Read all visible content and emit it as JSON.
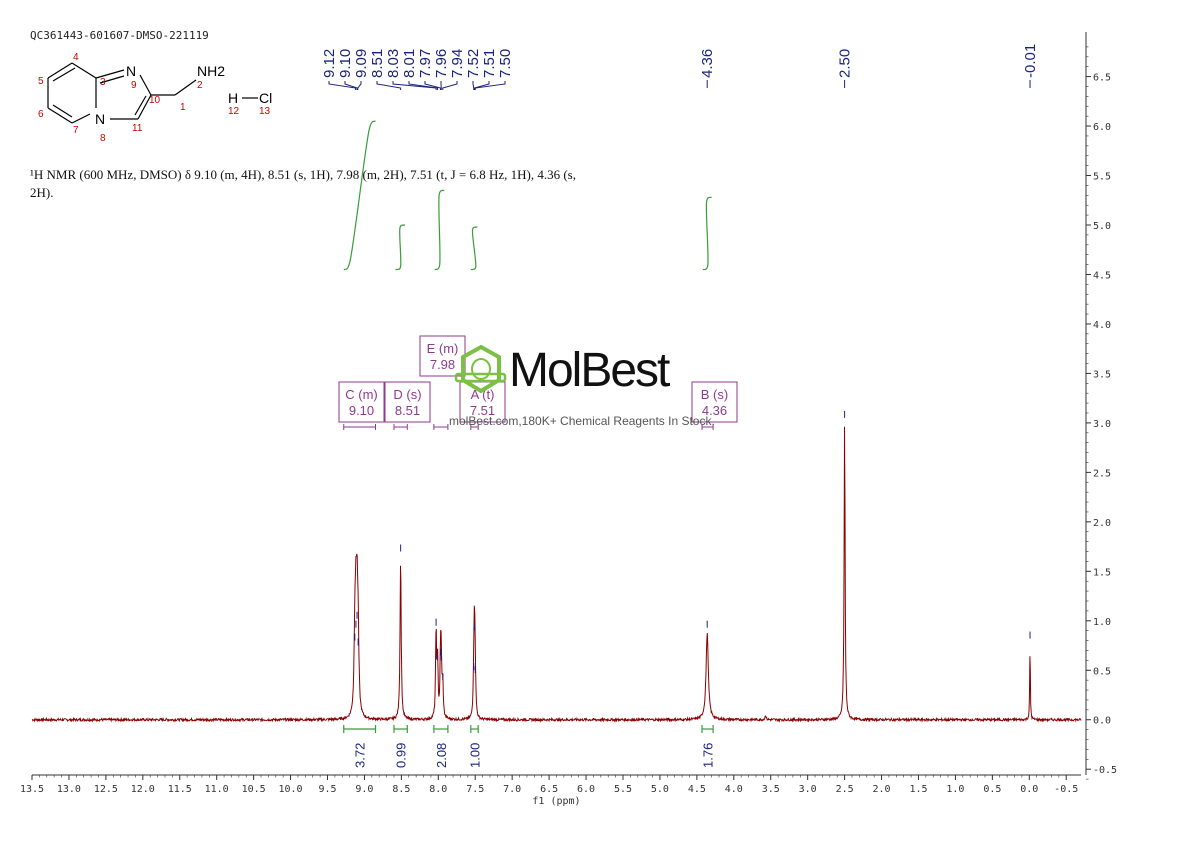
{
  "header": {
    "sample_id": "QC361443-601607-DMSO-221119",
    "nmr_line1": "¹H NMR (600 MHz, DMSO) δ 9.10 (m, 4H), 8.51 (s, 1H), 7.98 (m, 2H), 7.51 (t, J = 6.8 Hz, 1H), 4.36 (s,",
    "nmr_line2": "2H)."
  },
  "structure": {
    "atoms": [
      "4",
      "5",
      "6",
      "7",
      "3",
      "8",
      "9",
      "10",
      "11",
      "1",
      "2",
      "12",
      "13"
    ],
    "labels": {
      "N9": "N",
      "N8": "N",
      "NH2": "NH2",
      "H": "H",
      "Cl": "Cl"
    }
  },
  "watermark": {
    "brand": "MolBest",
    "tagline": "molBest.com,180K+ Chemical Reagents In Stock."
  },
  "colors": {
    "spectrum": "#8b0000",
    "integral": "#3a9b3a",
    "peak_label": "#1a237e",
    "multiplet_box": "#8e3a8e",
    "logo": "#7ac143"
  },
  "chart_data": {
    "type": "line",
    "title": "",
    "xlabel": "f1 (ppm)",
    "ylabel": "",
    "xlim": [
      13.5,
      -0.7
    ],
    "ylim": [
      -0.7,
      6.9
    ],
    "x_ticks": [
      "13.5",
      "13.0",
      "12.5",
      "12.0",
      "11.5",
      "11.0",
      "10.5",
      "10.0",
      "9.5",
      "9.0",
      "8.5",
      "8.0",
      "7.5",
      "7.0",
      "6.5",
      "6.0",
      "5.5",
      "5.0",
      "4.5",
      "4.0",
      "3.5",
      "3.0",
      "2.5",
      "2.0",
      "1.5",
      "1.0",
      "0.5",
      "0.0",
      "-0.5"
    ],
    "y_ticks": [
      "6.5",
      "6.0",
      "5.5",
      "5.0",
      "4.5",
      "4.0",
      "3.5",
      "3.0",
      "2.5",
      "2.0",
      "1.5",
      "1.0",
      "0.5",
      "0.0",
      "-0.5"
    ],
    "peak_labels": [
      {
        "x": 9.12,
        "text": "9.12"
      },
      {
        "x": 9.1,
        "text": "9.10"
      },
      {
        "x": 9.09,
        "text": "9.09"
      },
      {
        "x": 8.51,
        "text": "8.51"
      },
      {
        "x": 8.03,
        "text": "8.03"
      },
      {
        "x": 8.01,
        "text": "8.01"
      },
      {
        "x": 7.97,
        "text": "7.97"
      },
      {
        "x": 7.96,
        "text": "7.96"
      },
      {
        "x": 7.94,
        "text": "7.94"
      },
      {
        "x": 7.52,
        "text": "7.52"
      },
      {
        "x": 7.51,
        "text": "7.51"
      },
      {
        "x": 7.5,
        "text": "7.50"
      },
      {
        "x": 4.36,
        "text": "4.36"
      },
      {
        "x": 2.5,
        "text": "2.50"
      },
      {
        "x": -0.01,
        "text": "-0.01"
      }
    ],
    "peaks": [
      {
        "x": 9.13,
        "y": 0.75,
        "w": 0.012
      },
      {
        "x": 9.115,
        "y": 0.88,
        "w": 0.012
      },
      {
        "x": 9.1,
        "y": 0.97,
        "w": 0.012
      },
      {
        "x": 9.085,
        "y": 0.7,
        "w": 0.012
      },
      {
        "x": 8.51,
        "y": 1.65,
        "w": 0.009
      },
      {
        "x": 8.03,
        "y": 0.9,
        "w": 0.008
      },
      {
        "x": 8.01,
        "y": 0.55,
        "w": 0.008
      },
      {
        "x": 7.97,
        "y": 0.6,
        "w": 0.008
      },
      {
        "x": 7.96,
        "y": 0.55,
        "w": 0.008
      },
      {
        "x": 7.94,
        "y": 0.35,
        "w": 0.008
      },
      {
        "x": 7.52,
        "y": 0.45,
        "w": 0.008
      },
      {
        "x": 7.51,
        "y": 0.85,
        "w": 0.008
      },
      {
        "x": 7.5,
        "y": 0.42,
        "w": 0.008
      },
      {
        "x": 4.36,
        "y": 0.88,
        "w": 0.018
      },
      {
        "x": 3.57,
        "y": 0.05,
        "w": 0.008
      },
      {
        "x": 2.5,
        "y": 3.0,
        "w": 0.008
      },
      {
        "x": -0.01,
        "y": 0.77,
        "w": 0.005
      }
    ],
    "integrals": [
      {
        "from": 9.28,
        "to": 8.85,
        "bottom": 4.55,
        "top": 6.05
      },
      {
        "from": 8.58,
        "to": 8.45,
        "bottom": 4.55,
        "top": 5.0
      },
      {
        "from": 8.05,
        "to": 7.92,
        "bottom": 4.55,
        "top": 5.35
      },
      {
        "from": 7.56,
        "to": 7.47,
        "bottom": 4.55,
        "top": 4.98
      },
      {
        "from": 4.42,
        "to": 4.3,
        "bottom": 4.55,
        "top": 5.28
      }
    ],
    "integration_values": [
      {
        "from": 9.28,
        "to": 8.85,
        "text": "3.72"
      },
      {
        "from": 8.6,
        "to": 8.42,
        "text": "0.99"
      },
      {
        "from": 8.06,
        "to": 7.87,
        "text": "2.08"
      },
      {
        "from": 7.56,
        "to": 7.46,
        "text": "1.00"
      },
      {
        "from": 4.43,
        "to": 4.28,
        "text": "1.76"
      }
    ],
    "multiplets": [
      {
        "letter": "C (m)",
        "shift": "9.10",
        "center": 9.1,
        "from": 9.28,
        "to": 8.85,
        "row": 1
      },
      {
        "letter": "D (s)",
        "shift": "8.51",
        "center": 8.52,
        "from": 8.6,
        "to": 8.42,
        "row": 1
      },
      {
        "letter": "E (m)",
        "shift": "7.98",
        "center": 7.98,
        "from": 8.06,
        "to": 7.87,
        "row": 0
      },
      {
        "letter": "A (t)",
        "shift": "7.51",
        "center": 7.51,
        "from": 7.56,
        "to": 7.46,
        "row": 1
      },
      {
        "letter": "B (s)",
        "shift": "4.36",
        "center": 4.36,
        "from": 4.43,
        "to": 4.28,
        "row": 1
      }
    ]
  }
}
